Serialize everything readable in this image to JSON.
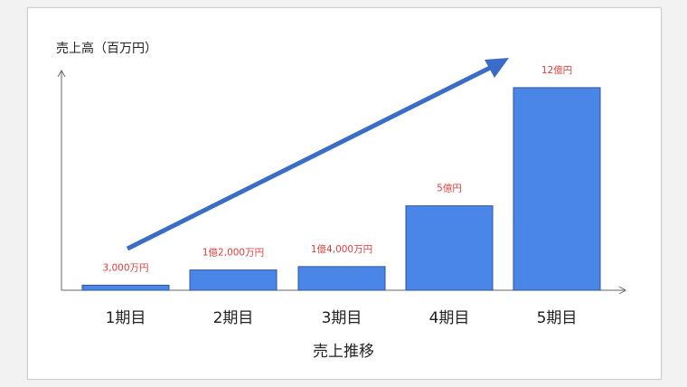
{
  "chart_data": {
    "type": "bar",
    "title": "",
    "ylabel": "売上高（百万円）",
    "xlabel": "売上推移",
    "categories": [
      "1期目",
      "2期目",
      "3期目",
      "4期目",
      "5期目"
    ],
    "values": [
      30,
      120,
      140,
      500,
      1200
    ],
    "data_labels": [
      "3,000万円",
      "1億2,000万円",
      "1億4,000万円",
      "5億円",
      "12億円"
    ],
    "ylim": [
      0,
      1280
    ],
    "grid": false,
    "legend": "none",
    "trend_arrow": true,
    "colors": {
      "bar": "#4a86e8",
      "bar_stroke": "#2f5597",
      "arrow": "#3a6cc9",
      "label": "#e03b3b",
      "axis": "#666666"
    }
  }
}
